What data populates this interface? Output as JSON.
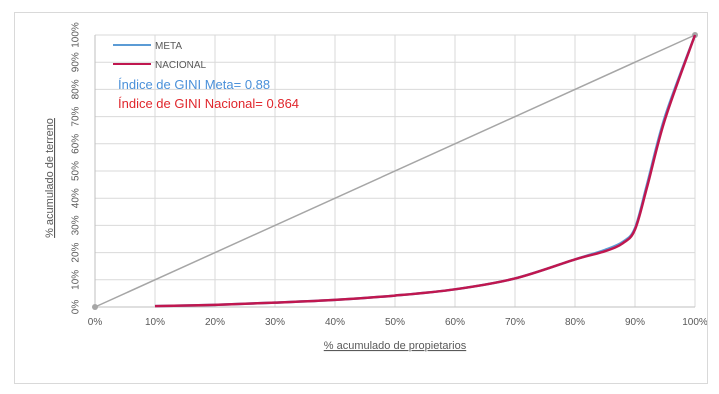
{
  "chart_data": {
    "type": "line",
    "title": "",
    "xlabel": "% acumulado de propietarios",
    "ylabel": "% acumulado de terreno",
    "xlim": [
      0,
      100
    ],
    "ylim": [
      0,
      100
    ],
    "x_ticks": [
      "0%",
      "10%",
      "20%",
      "30%",
      "40%",
      "50%",
      "60%",
      "70%",
      "80%",
      "90%",
      "100%"
    ],
    "y_ticks": [
      "0%",
      "10%",
      "20%",
      "30%",
      "40%",
      "50%",
      "60%",
      "70%",
      "80%",
      "90%",
      "100%"
    ],
    "grid": true,
    "legend_position": "top-left",
    "annotations": [
      {
        "text": "Índice de GINI Meta= 0.88",
        "color": "#4a90d9"
      },
      {
        "text": "Índice de GINI Nacional= 0.864",
        "color": "#e0262c"
      }
    ],
    "equality_line": {
      "x": [
        0,
        100
      ],
      "y": [
        0,
        100
      ],
      "color": "#a6a6a6"
    },
    "series": [
      {
        "name": "META",
        "color": "#5b9bd5",
        "x": [
          10,
          20,
          30,
          40,
          50,
          60,
          70,
          80,
          85,
          88,
          90,
          92,
          95,
          100
        ],
        "y": [
          0.3,
          0.8,
          1.6,
          2.6,
          4.2,
          6.5,
          10.5,
          17.5,
          21,
          24,
          29,
          45,
          70,
          100
        ]
      },
      {
        "name": "NACIONAL",
        "color": "#c0174f",
        "x": [
          10,
          20,
          30,
          40,
          50,
          60,
          70,
          80,
          85,
          88,
          90,
          92,
          95,
          100
        ],
        "y": [
          0.3,
          0.8,
          1.6,
          2.6,
          4.2,
          6.5,
          10.5,
          17.5,
          20.5,
          23.5,
          28.5,
          44,
          69,
          100
        ]
      }
    ]
  }
}
